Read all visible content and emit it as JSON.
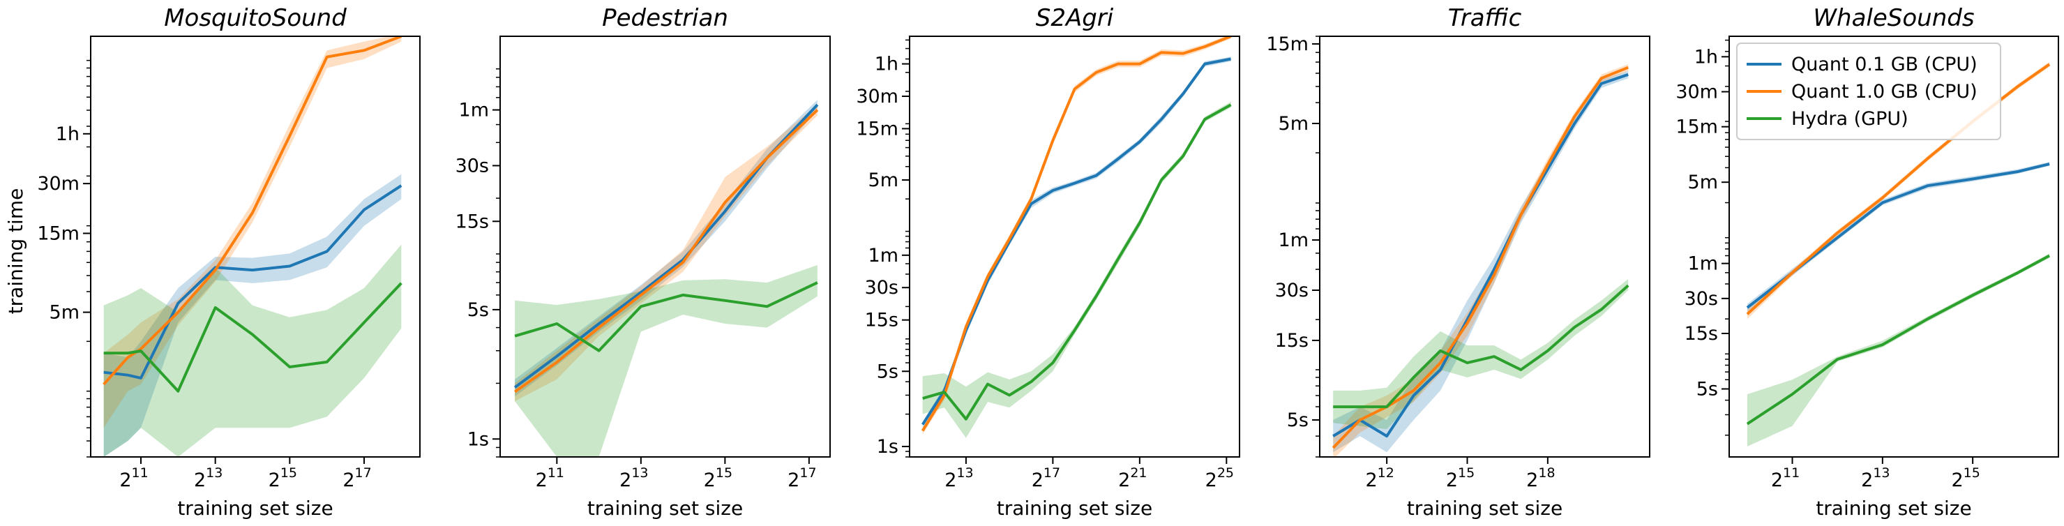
{
  "figure": {
    "ylabel": "training time",
    "xlabel": "training set size",
    "legend": [
      {
        "label": "Quant 0.1 GB (CPU)",
        "color": "#1f77b4"
      },
      {
        "label": "Quant 1.0 GB (CPU)",
        "color": "#ff7f0e"
      },
      {
        "label": "Hydra (GPU)",
        "color": "#2ca02c"
      }
    ],
    "legend_placement": "top-left of last panel"
  },
  "chart_data": [
    {
      "type": "line",
      "title": "MosquitoSound",
      "xlabel": "training set size",
      "ylabel": "training time",
      "xscale": "log2",
      "yscale": "log",
      "xlim_log2": [
        9.65,
        18.5
      ],
      "ylim_seconds": [
        40,
        14000
      ],
      "xticks": [
        {
          "exp": 11,
          "base": "2",
          "sup": "11"
        },
        {
          "exp": 13,
          "base": "2",
          "sup": "13"
        },
        {
          "exp": 15,
          "base": "2",
          "sup": "15"
        },
        {
          "exp": 17,
          "base": "2",
          "sup": "17"
        }
      ],
      "yticks": [
        {
          "sec": 300,
          "label": "5m"
        },
        {
          "sec": 900,
          "label": "15m"
        },
        {
          "sec": 1800,
          "label": "30m"
        },
        {
          "sec": 3600,
          "label": "1h"
        }
      ],
      "x_log2": [
        10,
        10.65,
        11,
        12,
        13,
        14,
        15,
        16,
        17,
        18
      ],
      "series": [
        {
          "name": "Quant 0.1 GB (CPU)",
          "color": "#1f77b4",
          "values": [
            130,
            125,
            120,
            340,
            560,
            540,
            570,
            700,
            1250,
            1750
          ],
          "lower": [
            40,
            50,
            60,
            260,
            470,
            450,
            470,
            560,
            1000,
            1450
          ],
          "upper": [
            170,
            160,
            200,
            420,
            650,
            640,
            680,
            860,
            1450,
            2050
          ]
        },
        {
          "name": "Quant 1.0 GB (CPU)",
          "color": "#ff7f0e",
          "values": [
            110,
            160,
            180,
            300,
            540,
            1200,
            3500,
            10500,
            11500,
            14000
          ],
          "lower": [
            60,
            100,
            110,
            250,
            460,
            1050,
            3000,
            9000,
            10200,
            13000
          ],
          "upper": [
            170,
            220,
            260,
            360,
            620,
            1380,
            4100,
            11500,
            13000,
            14500
          ]
        },
        {
          "name": "Hydra (GPU)",
          "color": "#2ca02c",
          "values": [
            170,
            170,
            175,
            100,
            320,
            220,
            140,
            150,
            260,
            450
          ],
          "lower": [
            40,
            50,
            60,
            40,
            60,
            60,
            60,
            70,
            120,
            240
          ],
          "upper": [
            330,
            380,
            420,
            300,
            560,
            330,
            280,
            310,
            420,
            770
          ]
        }
      ]
    },
    {
      "type": "line",
      "title": "Pedestrian",
      "xlabel": "training set size",
      "ylabel": "",
      "xscale": "log2",
      "yscale": "log",
      "xlim_log2": [
        9.65,
        17.5
      ],
      "ylim_seconds": [
        0.8,
        150
      ],
      "xticks": [
        {
          "exp": 11,
          "base": "2",
          "sup": "11"
        },
        {
          "exp": 13,
          "base": "2",
          "sup": "13"
        },
        {
          "exp": 15,
          "base": "2",
          "sup": "15"
        },
        {
          "exp": 17,
          "base": "2",
          "sup": "17"
        }
      ],
      "yticks": [
        {
          "sec": 1,
          "label": "1s"
        },
        {
          "sec": 5,
          "label": "5s"
        },
        {
          "sec": 15,
          "label": "15s"
        },
        {
          "sec": 30,
          "label": "30s"
        },
        {
          "sec": 60,
          "label": "1m"
        }
      ],
      "x_log2": [
        10,
        11,
        12,
        13,
        14,
        15,
        16,
        17.2
      ],
      "series": [
        {
          "name": "Quant 0.1 GB (CPU)",
          "color": "#1f77b4",
          "values": [
            1.9,
            2.8,
            4.2,
            6.2,
            9.3,
            17,
            33,
            64
          ],
          "lower": [
            1.7,
            2.5,
            3.8,
            5.6,
            8.5,
            15,
            29,
            60
          ],
          "upper": [
            2.1,
            3.1,
            4.6,
            6.8,
            10.3,
            19,
            37,
            68
          ]
        },
        {
          "name": "Quant 1.0 GB (CPU)",
          "color": "#ff7f0e",
          "values": [
            1.8,
            2.6,
            4.0,
            6.0,
            9.0,
            19,
            33,
            60
          ],
          "lower": [
            1.6,
            2.1,
            3.6,
            5.4,
            8.0,
            16,
            30,
            56
          ],
          "upper": [
            2.0,
            3.0,
            4.5,
            6.7,
            10.5,
            26,
            38,
            64
          ]
        },
        {
          "name": "Hydra (GPU)",
          "color": "#2ca02c",
          "values": [
            3.6,
            4.2,
            3.0,
            5.2,
            6.0,
            5.6,
            5.2,
            7.0
          ],
          "lower": [
            1.6,
            0.8,
            0.8,
            3.8,
            4.7,
            4.2,
            4.0,
            5.9
          ],
          "upper": [
            5.6,
            5.3,
            5.7,
            6.3,
            7.2,
            7.3,
            7.0,
            8.7
          ]
        }
      ]
    },
    {
      "type": "line",
      "title": "S2Agri",
      "xlabel": "training set size",
      "ylabel": "",
      "xscale": "log2",
      "yscale": "log",
      "xlim_log2": [
        10.4,
        25.6
      ],
      "ylim_seconds": [
        0.8,
        6500
      ],
      "xticks": [
        {
          "exp": 13,
          "base": "2",
          "sup": "13"
        },
        {
          "exp": 17,
          "base": "2",
          "sup": "17"
        },
        {
          "exp": 21,
          "base": "2",
          "sup": "21"
        },
        {
          "exp": 25,
          "base": "2",
          "sup": "25"
        }
      ],
      "yticks": [
        {
          "sec": 1,
          "label": "1s"
        },
        {
          "sec": 5,
          "label": "5s"
        },
        {
          "sec": 15,
          "label": "15s"
        },
        {
          "sec": 30,
          "label": "30s"
        },
        {
          "sec": 60,
          "label": "1m"
        },
        {
          "sec": 300,
          "label": "5m"
        },
        {
          "sec": 900,
          "label": "15m"
        },
        {
          "sec": 1800,
          "label": "30m"
        },
        {
          "sec": 3600,
          "label": "1h"
        }
      ],
      "x_log2": [
        11,
        12,
        13,
        14,
        15,
        16,
        17,
        18,
        19,
        20,
        21,
        22,
        23,
        24,
        25.2
      ],
      "series": [
        {
          "name": "Quant 0.1 GB (CPU)",
          "color": "#1f77b4",
          "values": [
            1.6,
            3.3,
            12,
            35,
            80,
            180,
            240,
            280,
            330,
            470,
            680,
            1100,
            1900,
            3600,
            4000
          ],
          "lower": [
            1.5,
            3.0,
            11,
            32,
            74,
            165,
            225,
            265,
            310,
            440,
            640,
            1020,
            1780,
            3400,
            3800
          ],
          "upper": [
            1.7,
            3.6,
            13,
            38,
            86,
            195,
            255,
            295,
            350,
            500,
            720,
            1180,
            2000,
            3800,
            4200
          ]
        },
        {
          "name": "Quant 1.0 GB (CPU)",
          "color": "#ff7f0e",
          "values": [
            1.4,
            3.0,
            13,
            38,
            85,
            200,
            700,
            2100,
            3000,
            3600,
            3600,
            4600,
            4500,
            5200,
            6500
          ],
          "lower": [
            1.3,
            2.7,
            12,
            35,
            78,
            185,
            640,
            1950,
            2800,
            3350,
            3350,
            4300,
            4200,
            4900,
            6200
          ],
          "upper": [
            1.5,
            3.3,
            14,
            41,
            92,
            215,
            760,
            2250,
            3200,
            3850,
            3850,
            4900,
            4800,
            5500,
            6800
          ]
        },
        {
          "name": "Hydra (GPU)",
          "color": "#2ca02c",
          "values": [
            2.8,
            3.2,
            1.8,
            3.8,
            3.0,
            4.0,
            6.0,
            12,
            25,
            55,
            120,
            300,
            500,
            1100,
            1500
          ],
          "lower": [
            2.0,
            2.3,
            1.2,
            2.6,
            2.3,
            3.3,
            5.0,
            11,
            23,
            50,
            110,
            280,
            470,
            1040,
            1420
          ],
          "upper": [
            4.5,
            4.8,
            3.6,
            4.9,
            4.2,
            5.0,
            7.2,
            13,
            27,
            60,
            130,
            320,
            535,
            1160,
            1600
          ]
        }
      ]
    },
    {
      "type": "line",
      "title": "Traffic",
      "xlabel": "training set size",
      "ylabel": "",
      "xscale": "log2",
      "yscale": "log",
      "xlim_log2": [
        9.5,
        21.8
      ],
      "ylim_seconds": [
        3,
        1000
      ],
      "xticks": [
        {
          "exp": 12,
          "base": "2",
          "sup": "12"
        },
        {
          "exp": 15,
          "base": "2",
          "sup": "15"
        },
        {
          "exp": 18,
          "base": "2",
          "sup": "18"
        }
      ],
      "yticks": [
        {
          "sec": 5,
          "label": "5s"
        },
        {
          "sec": 15,
          "label": "15s"
        },
        {
          "sec": 30,
          "label": "30s"
        },
        {
          "sec": 60,
          "label": "1m"
        },
        {
          "sec": 300,
          "label": "5m"
        },
        {
          "sec": 900,
          "label": "15m"
        }
      ],
      "x_log2": [
        10,
        11,
        12,
        13,
        14,
        15,
        16,
        17,
        18,
        19,
        20,
        21
      ],
      "series": [
        {
          "name": "Quant 0.1 GB (CPU)",
          "color": "#1f77b4",
          "values": [
            4.0,
            5.0,
            4.0,
            7.0,
            10,
            20,
            40,
            85,
            160,
            300,
            520,
            590
          ],
          "lower": [
            3.2,
            4.0,
            3.2,
            5.0,
            7.5,
            15,
            33,
            76,
            145,
            280,
            490,
            560
          ],
          "upper": [
            5.0,
            6.0,
            5.0,
            9.0,
            13,
            26,
            47,
            95,
            175,
            320,
            550,
            620
          ]
        },
        {
          "name": "Quant 1.0 GB (CPU)",
          "color": "#ff7f0e",
          "values": [
            3.4,
            5.0,
            6.0,
            7.5,
            11,
            19,
            37,
            85,
            170,
            330,
            560,
            650
          ],
          "lower": [
            2.9,
            4.2,
            5.2,
            6.4,
            9.5,
            16,
            33,
            78,
            155,
            310,
            530,
            620
          ],
          "upper": [
            4.0,
            6.0,
            7.0,
            8.8,
            13,
            22,
            41,
            93,
            185,
            350,
            590,
            680
          ]
        },
        {
          "name": "Hydra (GPU)",
          "color": "#2ca02c",
          "values": [
            6.0,
            6.0,
            6.0,
            9.0,
            13,
            11,
            12,
            10,
            13,
            18,
            23,
            32
          ],
          "lower": [
            4.8,
            4.6,
            4.4,
            6.5,
            10,
            9.0,
            10,
            8.8,
            11.5,
            16,
            21,
            30
          ],
          "upper": [
            7.5,
            7.5,
            7.8,
            12,
            17,
            14,
            14,
            11.5,
            14.5,
            20,
            26,
            35
          ]
        }
      ]
    },
    {
      "type": "line",
      "title": "WhaleSounds",
      "xlabel": "training set size",
      "ylabel": "",
      "xscale": "log2",
      "yscale": "log",
      "xlim_log2": [
        9.6,
        16.9
      ],
      "ylim_seconds": [
        1.3,
        5400
      ],
      "xticks": [
        {
          "exp": 11,
          "base": "2",
          "sup": "11"
        },
        {
          "exp": 13,
          "base": "2",
          "sup": "13"
        },
        {
          "exp": 15,
          "base": "2",
          "sup": "15"
        }
      ],
      "yticks": [
        {
          "sec": 5,
          "label": "5s"
        },
        {
          "sec": 15,
          "label": "15s"
        },
        {
          "sec": 30,
          "label": "30s"
        },
        {
          "sec": 60,
          "label": "1m"
        },
        {
          "sec": 300,
          "label": "5m"
        },
        {
          "sec": 900,
          "label": "15m"
        },
        {
          "sec": 1800,
          "label": "30m"
        },
        {
          "sec": 3600,
          "label": "1h"
        }
      ],
      "x_log2": [
        10,
        11,
        12,
        13,
        14,
        15,
        16,
        16.7
      ],
      "series": [
        {
          "name": "Quant 0.1 GB (CPU)",
          "color": "#1f77b4",
          "values": [
            25,
            50,
            100,
            200,
            280,
            320,
            370,
            430
          ],
          "lower": [
            23,
            47,
            95,
            190,
            265,
            305,
            355,
            415
          ],
          "upper": [
            27,
            54,
            106,
            212,
            295,
            338,
            388,
            448
          ]
        },
        {
          "name": "Quant 1.0 GB (CPU)",
          "color": "#ff7f0e",
          "values": [
            22,
            50,
            110,
            220,
            480,
            1000,
            2000,
            3100
          ],
          "lower": [
            20,
            47,
            104,
            210,
            455,
            950,
            1900,
            2950
          ],
          "upper": [
            24,
            53,
            116,
            232,
            505,
            1050,
            2100,
            3250
          ]
        },
        {
          "name": "Hydra (GPU)",
          "color": "#2ca02c",
          "values": [
            2.5,
            4.5,
            9.0,
            12,
            20,
            32,
            50,
            70
          ],
          "lower": [
            1.6,
            2.4,
            8.6,
            11.4,
            19,
            30.5,
            48,
            67
          ],
          "upper": [
            4.5,
            6.0,
            9.5,
            13,
            21,
            33.5,
            52,
            73
          ]
        }
      ]
    }
  ]
}
